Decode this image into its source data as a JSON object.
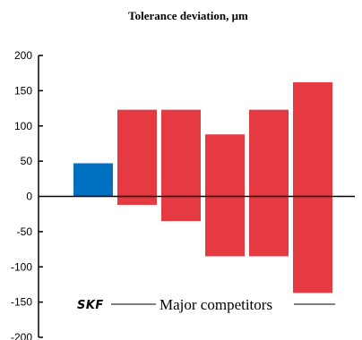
{
  "chart_data": {
    "type": "bar",
    "title": "Tolerance deviation, μm",
    "ylim": [
      -200,
      200
    ],
    "yticks": [
      200,
      150,
      100,
      50,
      0,
      -50,
      -100,
      -150,
      -200
    ],
    "grid": false,
    "bars": [
      {
        "low": 0,
        "high": 47,
        "color": "#0070c0"
      },
      {
        "low": -12,
        "high": 123,
        "color": "#e63a42"
      },
      {
        "low": -35,
        "high": 123,
        "color": "#e63a42"
      },
      {
        "low": -85,
        "high": 88,
        "color": "#e63a42"
      },
      {
        "low": -85,
        "high": 123,
        "color": "#e63a42"
      },
      {
        "low": -137,
        "high": 162,
        "color": "#e63a42"
      }
    ],
    "annotation": {
      "brand": "SKF",
      "competitors": "Major competitors"
    }
  }
}
